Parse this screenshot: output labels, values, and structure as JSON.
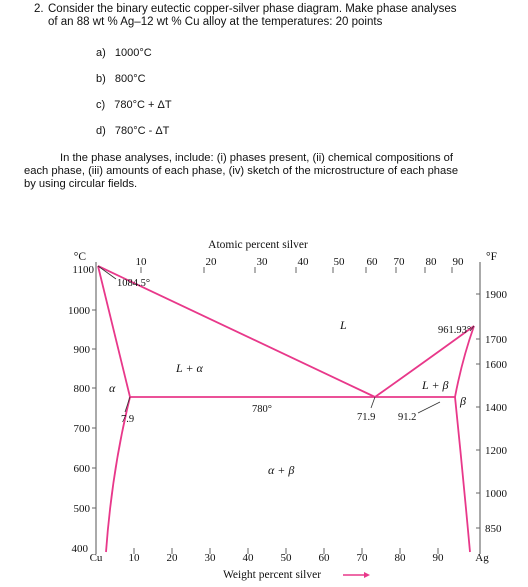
{
  "problem": {
    "number": "2.",
    "line1": "Consider the binary eutectic copper-silver phase diagram. Make phase analyses",
    "line2": "of an 88 wt % Ag–12 wt % Cu alloy at the temperatures: 20 points",
    "items": [
      {
        "label": "a)",
        "text": "1000°C"
      },
      {
        "label": "b)",
        "text": "800°C"
      },
      {
        "label": "c)",
        "text": "780°C + ΔT"
      },
      {
        "label": "d)",
        "text": "780°C - ΔT"
      }
    ],
    "instructions": [
      "In the phase analyses, include: (i) phases present, (ii) chemical compositions of",
      "each phase, (iii) amounts of each phase, (iv) sketch of the microstructure of each phase",
      "by using circular fields."
    ]
  },
  "diagram": {
    "top_axis_label": "Atomic percent silver",
    "bottom_axis_label": "Weight percent silver",
    "left_unit": "°C",
    "right_unit": "°F",
    "left_ticks": [
      "1100",
      "1000",
      "900",
      "800",
      "700",
      "600",
      "500",
      "400"
    ],
    "right_ticks": [
      "1900",
      "1700",
      "1600",
      "1400",
      "1200",
      "1000",
      "850"
    ],
    "top_ticks": [
      "10",
      "20",
      "30",
      "40",
      "50",
      "60",
      "70",
      "80",
      "90"
    ],
    "bottom_ticks": [
      "10",
      "20",
      "30",
      "40",
      "50",
      "60",
      "70",
      "80",
      "90"
    ],
    "left_end": "Cu",
    "right_end": "Ag",
    "labels": {
      "cu_melt": "1084.5°",
      "ag_melt": "961.93°",
      "eutectic_temp": "780°",
      "alpha_solvus": "7.9",
      "eutectic_comp": "71.9",
      "beta_solvus": "91.2",
      "liquid": "L",
      "l_alpha": "L + α",
      "l_beta": "L + β",
      "alpha": "α",
      "beta": "β",
      "alpha_beta": "α + β"
    },
    "line_color": "#e8388a"
  }
}
